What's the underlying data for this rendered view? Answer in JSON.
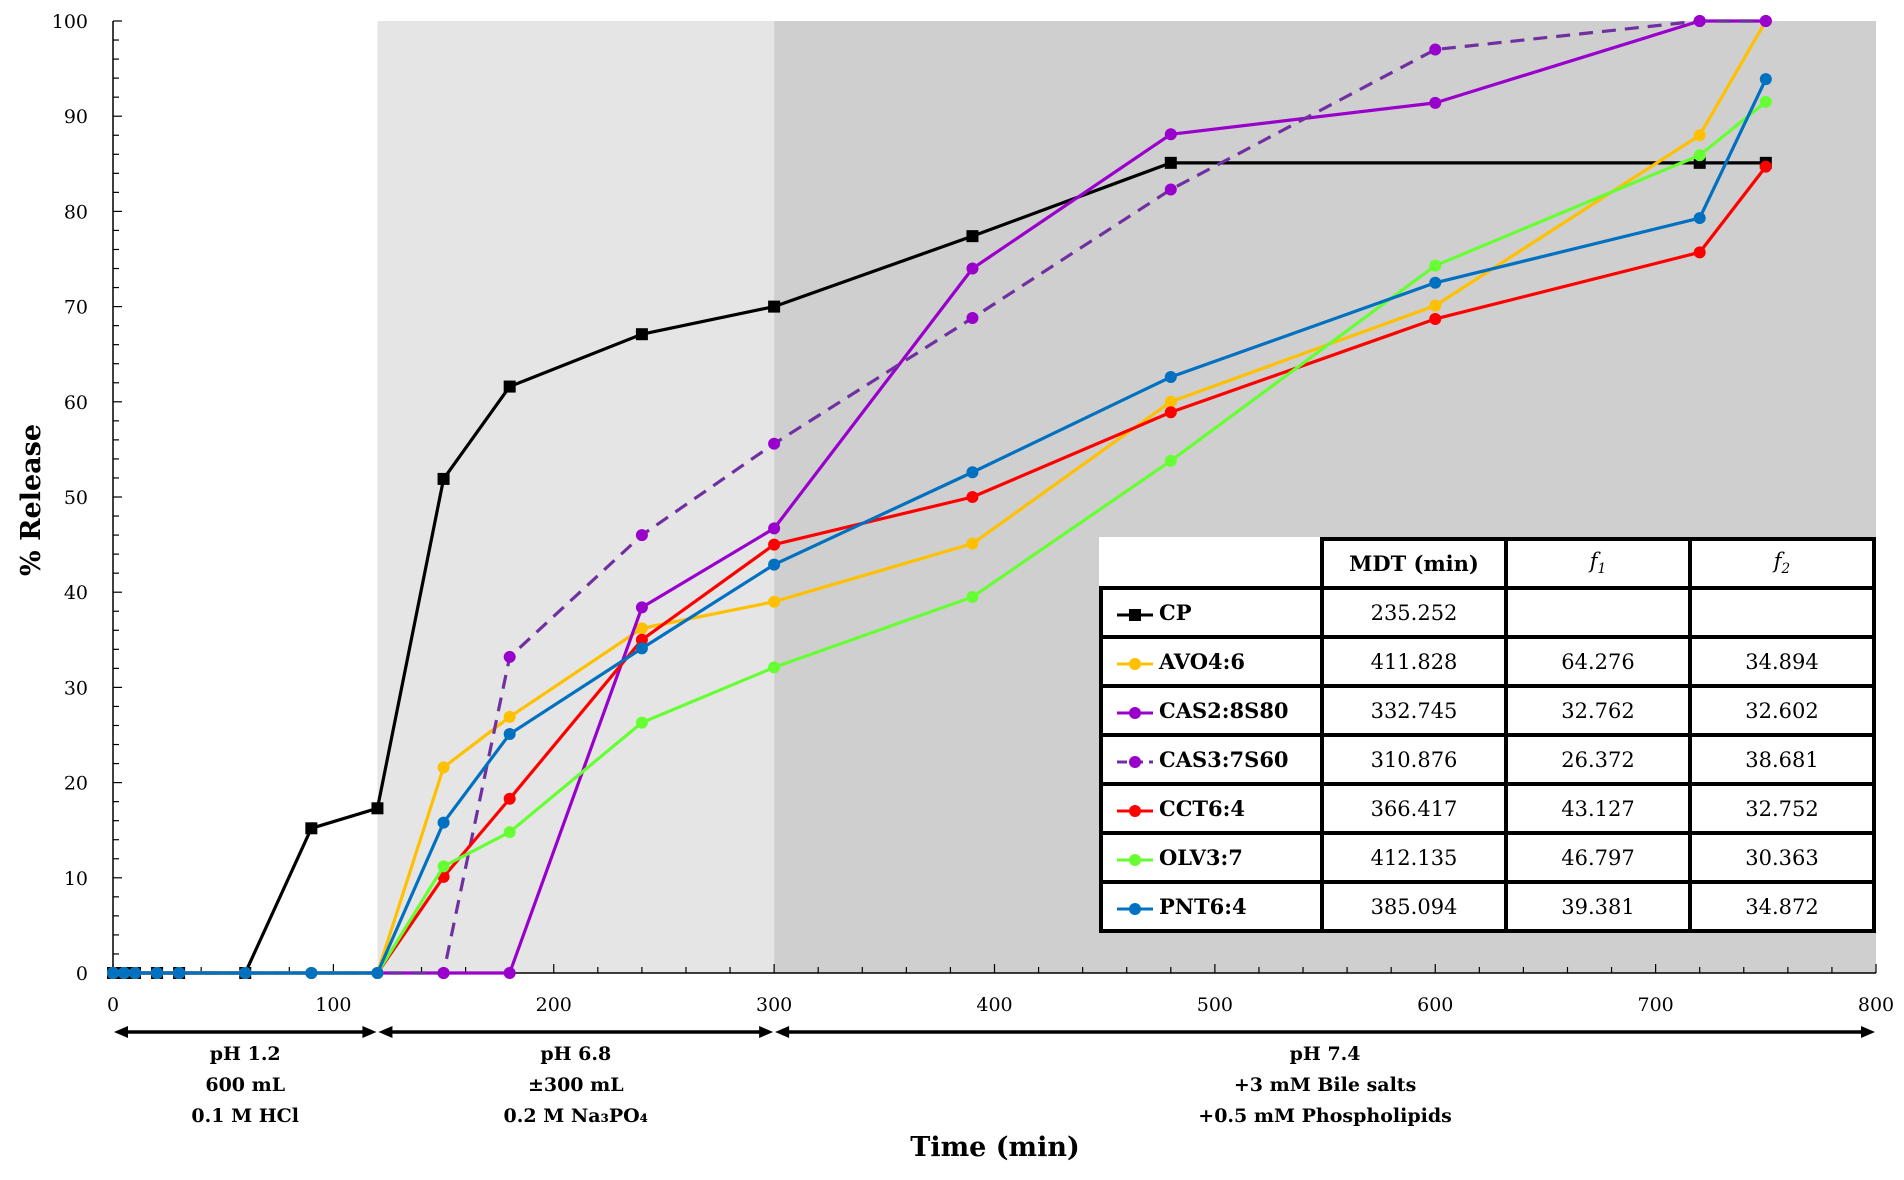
{
  "chart_data": {
    "type": "line",
    "title": "",
    "xlabel": "Time (min)",
    "ylabel": "% Release",
    "xlim": [
      0,
      800
    ],
    "ylim": [
      0,
      100
    ],
    "x_ticks": [
      0,
      100,
      200,
      300,
      400,
      500,
      600,
      700,
      800
    ],
    "y_ticks": [
      0,
      10,
      20,
      30,
      40,
      50,
      60,
      70,
      80,
      90,
      100
    ],
    "grid": false,
    "background_regions": [
      {
        "from": 0,
        "to": 120,
        "color": "#ffffff"
      },
      {
        "from": 120,
        "to": 300,
        "color": "#e5e5e5"
      },
      {
        "from": 300,
        "to": 800,
        "color": "#cfcfcf"
      }
    ],
    "phases": [
      {
        "from": 0,
        "to": 120,
        "lines": [
          "pH 1.2",
          "600 mL",
          "0.1 M HCl"
        ]
      },
      {
        "from": 120,
        "to": 300,
        "lines": [
          "pH 6.8",
          "±300 mL",
          "0.2 M Na₃PO₄"
        ]
      },
      {
        "from": 300,
        "to": 800,
        "lines": [
          "pH 7.4",
          "+3 mM Bile salts",
          "+0.5 mM Phospholipids"
        ]
      }
    ],
    "series": [
      {
        "name": "CP",
        "color": "#000000",
        "marker": "square",
        "dashed": false,
        "x": [
          0,
          5,
          10,
          20,
          30,
          60,
          90,
          120,
          150,
          180,
          240,
          300,
          390,
          480,
          720,
          750
        ],
        "y": [
          0,
          0,
          0,
          0,
          0,
          0,
          15.2,
          17.3,
          51.9,
          61.6,
          67.1,
          70.0,
          77.4,
          85.1,
          85.1,
          85.1
        ]
      },
      {
        "name": "AVO4:6",
        "color": "#ffc000",
        "marker": "circle",
        "dashed": false,
        "x": [
          0,
          5,
          10,
          20,
          30,
          60,
          90,
          120,
          150,
          180,
          240,
          300,
          390,
          480,
          600,
          720,
          750
        ],
        "y": [
          0,
          0,
          0,
          0,
          0,
          0,
          0,
          0,
          21.6,
          26.9,
          36.2,
          39.0,
          45.1,
          60.0,
          70.1,
          88.0,
          100
        ]
      },
      {
        "name": "CAS2:8S80",
        "color": "#9900cc",
        "marker": "circle",
        "dashed": false,
        "x": [
          0,
          5,
          10,
          20,
          30,
          60,
          90,
          120,
          150,
          180,
          240,
          300,
          390,
          480,
          600,
          720,
          750
        ],
        "y": [
          0,
          0,
          0,
          0,
          0,
          0,
          0,
          0,
          0,
          0,
          38.4,
          46.7,
          74.0,
          88.1,
          91.4,
          100,
          100
        ]
      },
      {
        "name": "CAS3:7S60",
        "color": "#7030a0",
        "marker_color": "#9900cc",
        "marker": "circle",
        "dashed": true,
        "x": [
          0,
          5,
          10,
          20,
          30,
          60,
          90,
          120,
          150,
          180,
          240,
          300,
          390,
          480,
          600,
          720,
          750
        ],
        "y": [
          0,
          0,
          0,
          0,
          0,
          0,
          0,
          0,
          0,
          33.2,
          46.0,
          55.6,
          68.8,
          82.3,
          97.0,
          100,
          100
        ]
      },
      {
        "name": "CCT6:4",
        "color": "#ff0000",
        "marker": "circle",
        "dashed": false,
        "x": [
          0,
          5,
          10,
          20,
          30,
          60,
          90,
          120,
          150,
          180,
          240,
          300,
          390,
          480,
          600,
          720,
          750
        ],
        "y": [
          0,
          0,
          0,
          0,
          0,
          0,
          0,
          0,
          10.1,
          18.3,
          35.0,
          45.0,
          50.0,
          58.9,
          68.7,
          75.7,
          84.7
        ]
      },
      {
        "name": "OLV3:7",
        "color": "#66ff33",
        "marker": "circle",
        "dashed": false,
        "x": [
          0,
          5,
          10,
          20,
          30,
          60,
          90,
          120,
          150,
          180,
          240,
          300,
          390,
          480,
          600,
          720,
          750
        ],
        "y": [
          0,
          0,
          0,
          0,
          0,
          0,
          0,
          0,
          11.2,
          14.8,
          26.3,
          32.1,
          39.5,
          53.8,
          74.3,
          85.9,
          91.5
        ]
      },
      {
        "name": "PNT6:4",
        "color": "#0070c0",
        "marker": "circle",
        "dashed": false,
        "x": [
          0,
          5,
          10,
          20,
          30,
          60,
          90,
          120,
          150,
          180,
          240,
          300,
          390,
          480,
          600,
          720,
          750
        ],
        "y": [
          0,
          0,
          0,
          0,
          0,
          0,
          0,
          0,
          15.8,
          25.1,
          34.1,
          42.9,
          52.6,
          62.6,
          72.5,
          79.3,
          93.9
        ]
      }
    ]
  },
  "table": {
    "headers": [
      "MDT (min)",
      "f1",
      "f2"
    ],
    "header_parts": {
      "f1_base": "f",
      "f1_sub": "1",
      "f2_base": "f",
      "f2_sub": "2"
    },
    "rows": [
      {
        "name": "CP",
        "mdt": "235.252",
        "f1": "",
        "f2": ""
      },
      {
        "name": "AVO4:6",
        "mdt": "411.828",
        "f1": "64.276",
        "f2": "34.894"
      },
      {
        "name": "CAS2:8S80",
        "mdt": "332.745",
        "f1": "32.762",
        "f2": "32.602"
      },
      {
        "name": "CAS3:7S60",
        "mdt": "310.876",
        "f1": "26.372",
        "f2": "38.681"
      },
      {
        "name": "CCT6:4",
        "mdt": "366.417",
        "f1": "43.127",
        "f2": "32.752"
      },
      {
        "name": "OLV3:7",
        "mdt": "412.135",
        "f1": "46.797",
        "f2": "30.363"
      },
      {
        "name": "PNT6:4",
        "mdt": "385.094",
        "f1": "39.381",
        "f2": "34.872"
      }
    ]
  }
}
